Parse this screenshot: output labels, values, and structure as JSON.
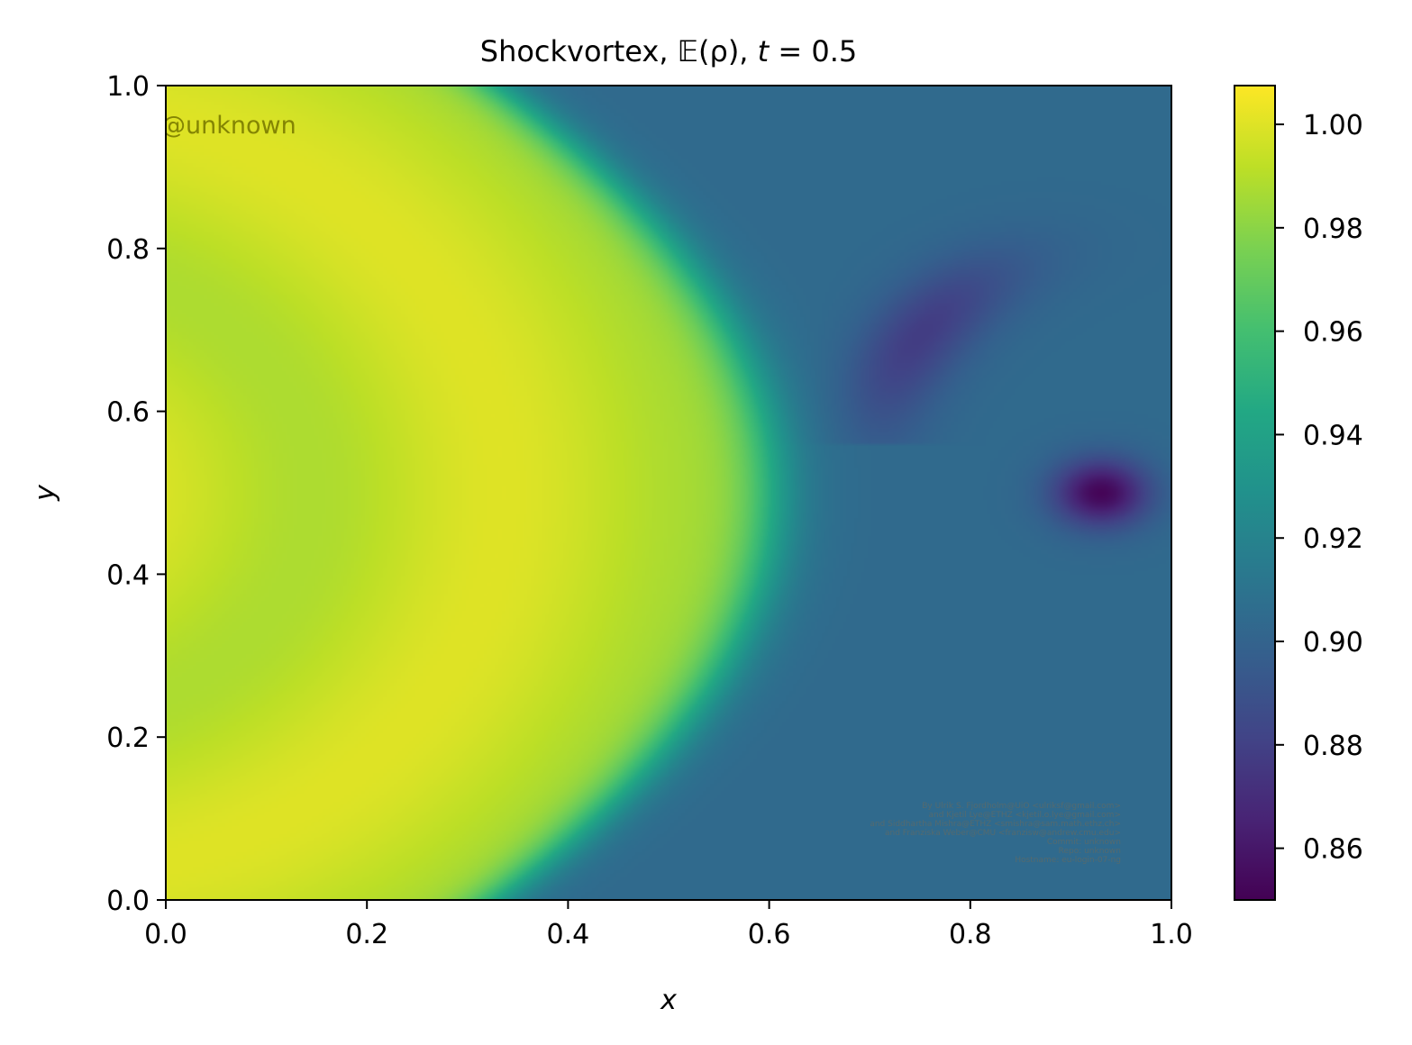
{
  "chart_data": {
    "type": "heatmap",
    "title": "Shockvortex, 𝔼(ρ), t = 0.5",
    "title_parts": {
      "name": "Shockvortex, ",
      "expectation": "𝔼(ρ)",
      "sep": ", ",
      "tvar": "t",
      "tval": " = 0.5"
    },
    "xlabel": "x",
    "ylabel": "y",
    "xlim": [
      0.0,
      1.0
    ],
    "ylim": [
      0.0,
      1.0
    ],
    "x_ticks": [
      "0.0",
      "0.2",
      "0.4",
      "0.6",
      "0.8",
      "1.0"
    ],
    "y_ticks": [
      "0.0",
      "0.2",
      "0.4",
      "0.6",
      "0.8",
      "1.0"
    ],
    "colormap": "viridis",
    "colorbar": {
      "vmin": 0.85,
      "vmax": 1.0075,
      "ticks": [
        "0.86",
        "0.88",
        "0.90",
        "0.92",
        "0.94",
        "0.96",
        "0.98",
        "1.00"
      ],
      "tick_values": [
        0.86,
        0.88,
        0.9,
        0.92,
        0.94,
        0.96,
        0.98,
        1.0
      ]
    },
    "field_description": {
      "pre_shock_value": 0.9,
      "post_shock_plateau": 0.995,
      "shock_x_at_center": 0.6,
      "vortex_min": {
        "x": 0.93,
        "y": 0.5,
        "value": 0.85
      },
      "arc_min": {
        "x": 0.72,
        "y": 0.65,
        "value": 0.878
      }
    },
    "grid": false,
    "legend": "none"
  },
  "watermark": "@unknown",
  "credits": [
    "By Ulrik S. Fjordholm@UiO <ulriksf@gmail.com>",
    "and Kjetil Lye@ETHZ <kjetil.o.lye@gmail.com>",
    "and Siddhartha Mishra@ETHZ <smishra@sam.math.ethz.ch>",
    "and Franziska Weber@CMU <franzisw@andrew.cmu.edu>",
    "Commit: unknown",
    "Repo: unknown",
    "Hostname: eu-login-07-ng"
  ],
  "colors": {
    "watermark": "#7a7a00",
    "credits": "#5a6a6a"
  }
}
